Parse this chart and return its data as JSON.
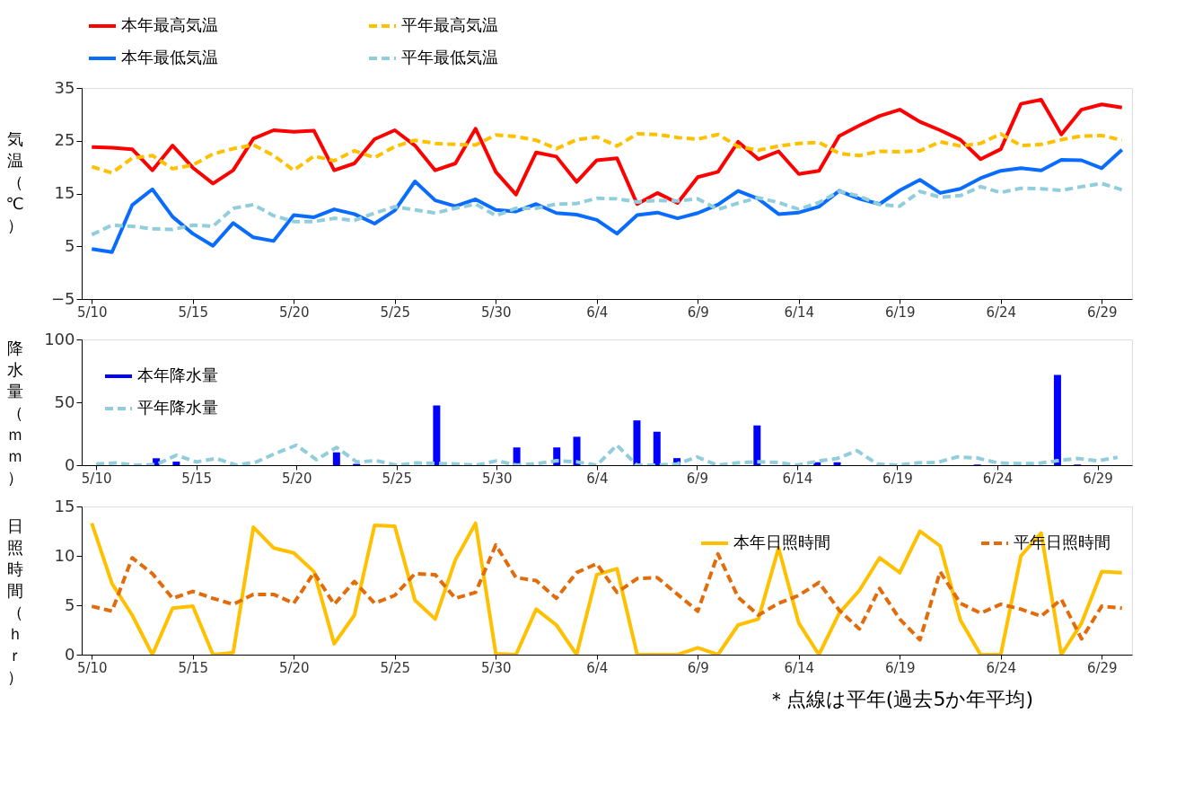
{
  "chart_data": [
    {
      "type": "line",
      "ylabel": "気温（℃）",
      "legend": "top",
      "grid": false,
      "categories": [
        "5/10",
        null,
        null,
        null,
        null,
        "5/15",
        null,
        null,
        null,
        null,
        "5/20",
        null,
        null,
        null,
        null,
        "5/25",
        null,
        null,
        null,
        null,
        "5/30",
        null,
        null,
        null,
        null,
        "6/4",
        null,
        null,
        null,
        null,
        "6/9",
        null,
        null,
        null,
        null,
        "6/14",
        null,
        null,
        null,
        null,
        "6/19",
        null,
        null,
        null,
        null,
        "6/24",
        null,
        null,
        null,
        null,
        "6/29",
        null
      ],
      "ylim": [
        -5,
        35
      ],
      "yticks": [
        {
          "value": -5,
          "label": "−5"
        },
        5,
        15,
        25,
        35
      ],
      "series": [
        {
          "name": "本年最高気温",
          "color": "#ff0000",
          "line_style": "solid",
          "values": [
            23.8,
            23.7,
            23.4,
            19.4,
            24.1,
            19.9,
            16.9,
            19.4,
            25.4,
            27.0,
            26.7,
            26.9,
            19.4,
            20.7,
            25.3,
            27.0,
            24.1,
            19.4,
            20.7,
            27.3,
            19.1,
            14.8,
            22.8,
            22.0,
            17.2,
            21.3,
            21.7,
            13.0,
            15.1,
            13.2,
            18.1,
            19.1,
            24.8,
            21.5,
            23.0,
            18.7,
            19.3,
            25.9,
            27.9,
            29.7,
            30.9,
            28.6,
            27.0,
            25.2,
            21.5,
            23.4,
            32.0,
            32.8,
            26.2,
            30.9,
            31.9,
            31.3
          ]
        },
        {
          "name": "平年最高気温",
          "color": "#ffc000",
          "line_style": "dashed",
          "values": [
            20.1,
            18.9,
            21.7,
            22.2,
            19.7,
            20.4,
            22.5,
            23.5,
            24.2,
            22.2,
            19.4,
            22.1,
            21.2,
            23.1,
            21.8,
            23.9,
            25.1,
            24.5,
            24.3,
            24.2,
            26.1,
            25.8,
            25.1,
            23.5,
            25.2,
            25.7,
            24.0,
            26.3,
            26.2,
            25.6,
            25.3,
            26.2,
            23.9,
            23.2,
            24.0,
            24.5,
            24.7,
            22.6,
            22.2,
            23.0,
            22.9,
            23.1,
            24.8,
            24.0,
            24.5,
            26.3,
            24.1,
            24.3,
            25.2,
            25.9,
            26.0,
            25.1
          ]
        },
        {
          "name": "本年最低気温",
          "color": "#0a6cff",
          "line_style": "solid",
          "values": [
            4.5,
            3.9,
            12.8,
            15.8,
            10.6,
            7.4,
            5.1,
            9.4,
            6.7,
            6.0,
            10.9,
            10.5,
            12.0,
            11.1,
            9.3,
            11.8,
            17.3,
            13.7,
            12.6,
            13.9,
            11.9,
            11.6,
            13.0,
            11.3,
            11.0,
            10.0,
            7.4,
            10.9,
            11.4,
            10.3,
            11.3,
            12.9,
            15.5,
            14.0,
            11.1,
            11.4,
            12.5,
            15.5,
            14.0,
            13.0,
            15.6,
            17.6,
            15.1,
            15.9,
            17.9,
            19.3,
            19.8,
            19.4,
            21.4,
            21.3,
            19.8,
            23.3
          ]
        },
        {
          "name": "平年最低気温",
          "color": "#92cddc",
          "line_style": "dashed",
          "values": [
            7.2,
            9.0,
            8.8,
            8.3,
            8.2,
            9.0,
            8.8,
            12.2,
            12.9,
            10.8,
            9.7,
            9.7,
            10.3,
            9.9,
            11.3,
            12.5,
            11.9,
            11.3,
            12.2,
            13.0,
            10.8,
            12.2,
            12.2,
            13.0,
            13.1,
            14.1,
            14.0,
            13.4,
            13.7,
            13.6,
            14.0,
            12.0,
            13.2,
            14.2,
            13.3,
            12.0,
            13.3,
            15.4,
            14.5,
            12.9,
            12.6,
            15.4,
            14.3,
            14.6,
            16.3,
            15.2,
            16.0,
            15.9,
            15.6,
            16.3,
            16.9,
            15.7
          ]
        }
      ]
    },
    {
      "type": "line",
      "ylabel": "降水量（ｍｍ）",
      "legend": "top left",
      "grid": false,
      "categories": [
        "5/10",
        null,
        null,
        null,
        null,
        "5/15",
        null,
        null,
        null,
        null,
        "5/20",
        null,
        null,
        null,
        null,
        "5/25",
        null,
        null,
        null,
        null,
        "5/30",
        null,
        null,
        null,
        null,
        "6/4",
        null,
        null,
        null,
        null,
        "6/9",
        null,
        null,
        null,
        null,
        "6/14",
        null,
        null,
        null,
        null,
        "6/19",
        null,
        null,
        null,
        null,
        "6/24",
        null,
        null,
        null,
        null,
        "6/29",
        null
      ],
      "ylim": [
        0,
        100
      ],
      "yticks": [
        0,
        50,
        100
      ],
      "series": [
        {
          "name": "本年降水量",
          "type": "bar",
          "color": "#0000ff",
          "values": [
            0,
            0,
            0,
            5.5,
            2.8,
            0,
            0,
            0,
            0,
            0,
            0,
            0,
            10.2,
            1.0,
            0,
            0,
            0,
            47.5,
            0,
            0,
            0,
            14.1,
            0,
            14.1,
            22.6,
            0,
            0,
            35.6,
            26.6,
            5.6,
            0,
            0,
            0,
            31.6,
            0,
            0,
            2.3,
            2.3,
            0,
            0,
            null,
            0,
            0,
            0,
            0.5,
            0,
            0,
            0,
            71.8,
            0.5,
            0,
            0
          ]
        },
        {
          "name": "平年降水量",
          "color": "#92cddc",
          "line_style": "dashed",
          "values": [
            0.9,
            1.8,
            0.0,
            0.5,
            7.9,
            2.6,
            5.3,
            0,
            2.6,
            9.7,
            15.9,
            4.4,
            14.1,
            2.6,
            3.5,
            0,
            1.8,
            1.3,
            0.9,
            0,
            3.5,
            0,
            1.3,
            3.5,
            2.6,
            0,
            15.9,
            0,
            0,
            0.9,
            6.6,
            0,
            1.8,
            2.6,
            2.2,
            0,
            3.1,
            5.3,
            11.5,
            0.9,
            0,
            1.8,
            2.2,
            6.6,
            5.7,
            1.8,
            1.3,
            1.3,
            3.5,
            5.3,
            3.5,
            6.2
          ]
        }
      ]
    },
    {
      "type": "line",
      "ylabel": "日照時間（ｈｒ）",
      "legend": "top right",
      "grid": false,
      "categories": [
        "5/10",
        null,
        null,
        null,
        null,
        "5/15",
        null,
        null,
        null,
        null,
        "5/20",
        null,
        null,
        null,
        null,
        "5/25",
        null,
        null,
        null,
        null,
        "5/30",
        null,
        null,
        null,
        null,
        "6/4",
        null,
        null,
        null,
        null,
        "6/9",
        null,
        null,
        null,
        null,
        "6/14",
        null,
        null,
        null,
        null,
        "6/19",
        null,
        null,
        null,
        null,
        "6/24",
        null,
        null,
        null,
        null,
        "6/29",
        null
      ],
      "ylim": [
        0,
        15
      ],
      "yticks": [
        0,
        5,
        10,
        15
      ],
      "annotations": [
        "＊点線は平年(過去5か年平均)"
      ],
      "series": [
        {
          "name": "本年日照時間",
          "color": "#ffc000",
          "line_style": "solid",
          "values": [
            13.3,
            7.2,
            4.0,
            0,
            4.7,
            4.9,
            0,
            0.2,
            12.9,
            10.8,
            10.3,
            8.4,
            1.1,
            4.0,
            13.1,
            13.0,
            5.5,
            3.6,
            9.6,
            13.3,
            0.1,
            0,
            4.6,
            3.0,
            0,
            8.1,
            8.7,
            0,
            0,
            0,
            0.7,
            0,
            3.0,
            3.6,
            10.8,
            3.2,
            0,
            4.2,
            6.5,
            9.8,
            8.3,
            12.5,
            11.0,
            3.5,
            0,
            0,
            10.0,
            12.3,
            0,
            3.2,
            8.4,
            8.3
          ]
        },
        {
          "name": "平年日照時間",
          "color": "#e26b0a",
          "line_style": "dashed",
          "values": [
            4.9,
            4.4,
            9.8,
            8.2,
            5.7,
            6.4,
            5.7,
            5.1,
            6.1,
            6.1,
            5.2,
            8.3,
            5.1,
            7.4,
            5.2,
            6.0,
            8.2,
            8.1,
            5.7,
            6.3,
            11.1,
            7.8,
            7.5,
            5.7,
            8.3,
            9.2,
            6.3,
            7.7,
            7.8,
            6.1,
            4.4,
            10.2,
            5.8,
            4.0,
            5.2,
            6.0,
            7.3,
            4.5,
            2.6,
            6.7,
            3.6,
            1.5,
            8.4,
            5.2,
            4.2,
            5.1,
            4.6,
            3.9,
            5.6,
            1.6,
            4.9,
            4.7
          ]
        }
      ]
    }
  ]
}
